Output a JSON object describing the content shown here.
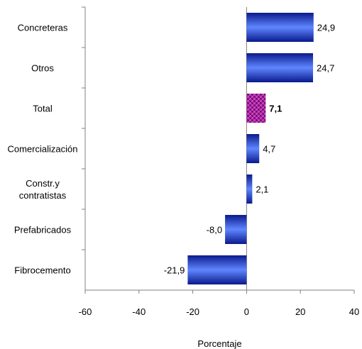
{
  "chart_data": {
    "type": "bar",
    "orientation": "horizontal",
    "categories": [
      "Concreteras",
      "Otros",
      "Total",
      "Comercialización",
      "Constr.y contratistas",
      "Prefabricados",
      "Fibrocemento"
    ],
    "category_label_lines": [
      [
        "Concreteras"
      ],
      [
        "Otros"
      ],
      [
        "Total"
      ],
      [
        "Comercialización"
      ],
      [
        "Constr.y",
        "contratistas"
      ],
      [
        "Prefabricados"
      ],
      [
        "Fibrocemento"
      ]
    ],
    "values": [
      24.9,
      24.7,
      7.1,
      4.7,
      2.1,
      -8.0,
      -21.9
    ],
    "value_labels": [
      "24,9",
      "24,7",
      "7,1",
      "4,7",
      "2,1",
      "-8,0",
      "-21,9"
    ],
    "highlight_category": "Total",
    "xlabel": "Porcentaje",
    "ylabel": "",
    "xlim": [
      -60,
      40
    ],
    "xticks": [
      -60,
      -40,
      -20,
      0,
      20,
      40
    ],
    "xtick_labels": [
      "-60",
      "-40",
      "-20",
      "0",
      "20",
      "40"
    ],
    "grid": false,
    "legend": "none",
    "colors": {
      "bar_dark": "#0a1a8c",
      "bar_light": "#5f86ff",
      "highlight_fill": "#b81fb0",
      "highlight_pattern": "#4a0a46",
      "axis": "#808080"
    }
  }
}
